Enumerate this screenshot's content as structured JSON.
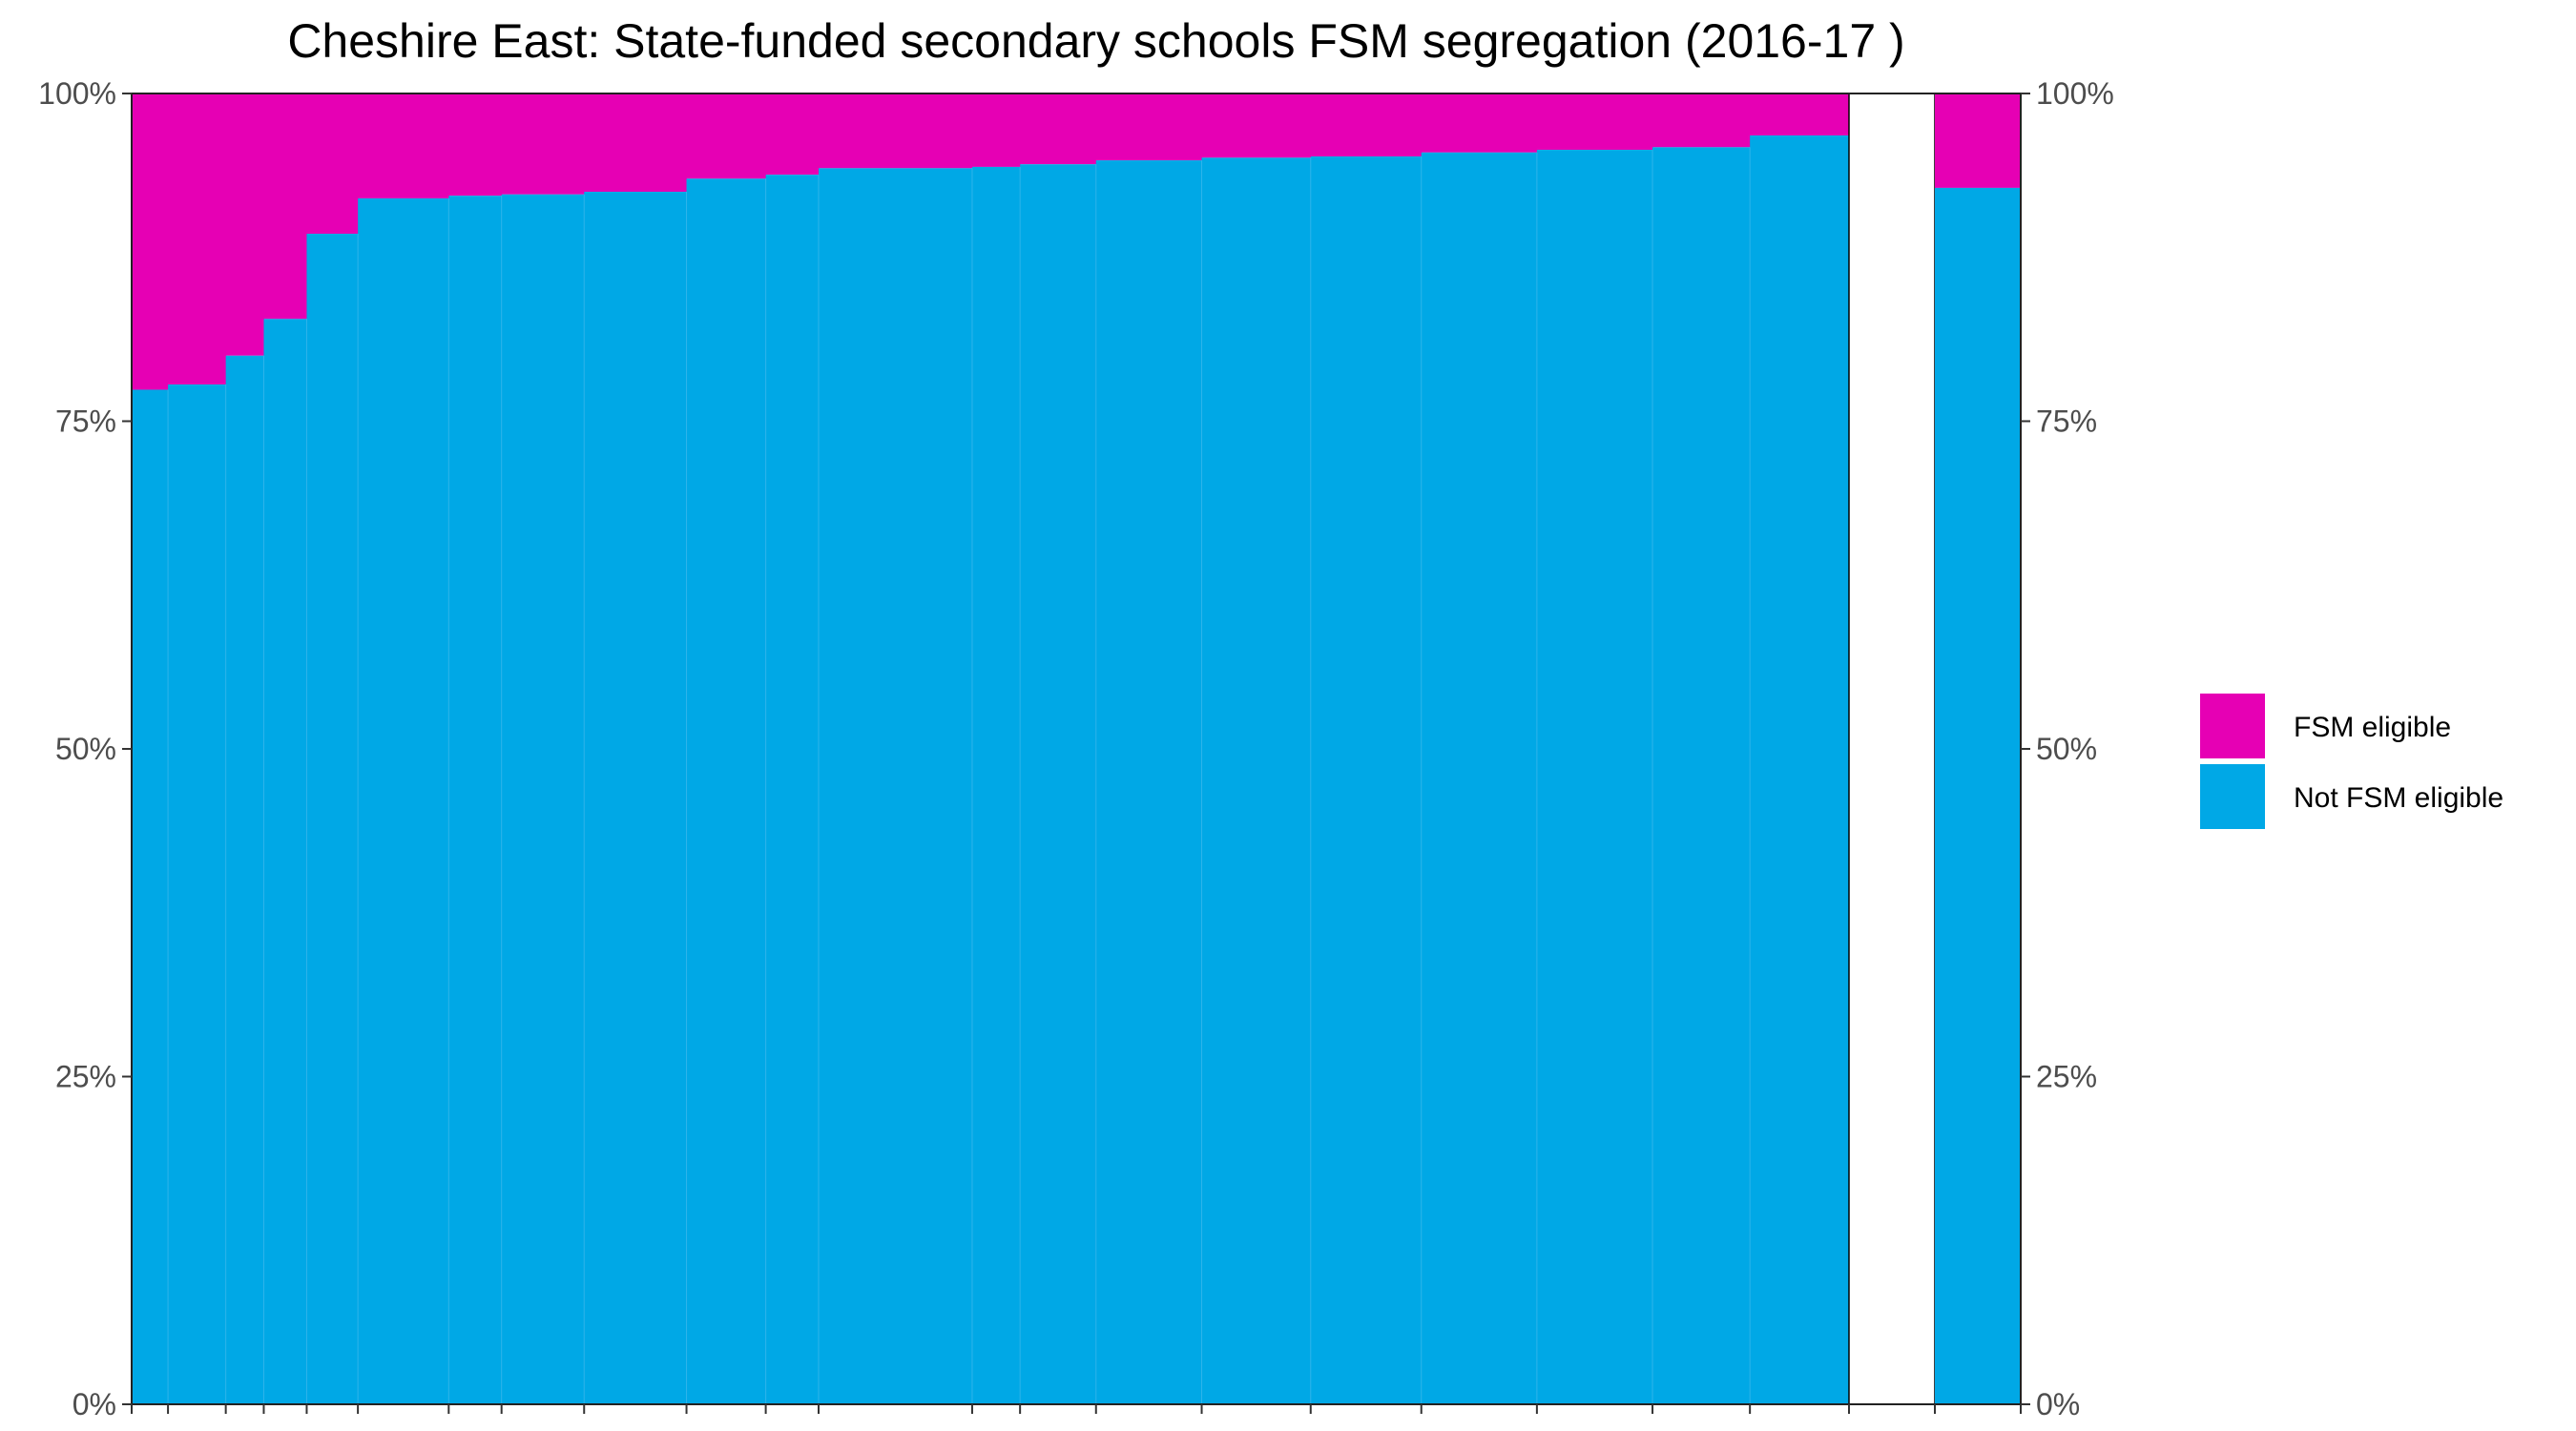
{
  "chart_data": {
    "type": "bar",
    "title": "Cheshire East: State-funded secondary schools FSM segregation (2016-17 )",
    "xlabel": "",
    "ylabel": "",
    "ylim": [
      0,
      100
    ],
    "y_ticks": [
      "0%",
      "25%",
      "50%",
      "75%",
      "100%"
    ],
    "y_tick_values": [
      0,
      25,
      50,
      75,
      100
    ],
    "secondary_y_axis": true,
    "grid": false,
    "legend_position": "right",
    "colors": {
      "fsm": "#e600b4",
      "not_fsm": "#00a8e6",
      "gap": "#ffffff"
    },
    "legend": [
      {
        "key": "fsm",
        "label": "FSM eligible"
      },
      {
        "key": "not_fsm",
        "label": "Not FSM eligible"
      }
    ],
    "series": [
      {
        "key": "not_fsm",
        "name": "Not FSM eligible"
      },
      {
        "key": "fsm",
        "name": "FSM eligible"
      }
    ],
    "schools": [
      {
        "relative_size": 22,
        "not_fsm_pct": 77.4
      },
      {
        "relative_size": 35,
        "not_fsm_pct": 77.8
      },
      {
        "relative_size": 23,
        "not_fsm_pct": 80.0
      },
      {
        "relative_size": 26,
        "not_fsm_pct": 82.8
      },
      {
        "relative_size": 31,
        "not_fsm_pct": 89.3
      },
      {
        "relative_size": 55,
        "not_fsm_pct": 92.0
      },
      {
        "relative_size": 32,
        "not_fsm_pct": 92.2
      },
      {
        "relative_size": 50,
        "not_fsm_pct": 92.3
      },
      {
        "relative_size": 62,
        "not_fsm_pct": 92.5
      },
      {
        "relative_size": 48,
        "not_fsm_pct": 93.5
      },
      {
        "relative_size": 32,
        "not_fsm_pct": 93.8
      },
      {
        "relative_size": 93,
        "not_fsm_pct": 94.3
      },
      {
        "relative_size": 29,
        "not_fsm_pct": 94.4
      },
      {
        "relative_size": 46,
        "not_fsm_pct": 94.6
      },
      {
        "relative_size": 64,
        "not_fsm_pct": 94.9
      },
      {
        "relative_size": 66,
        "not_fsm_pct": 95.1
      },
      {
        "relative_size": 67,
        "not_fsm_pct": 95.2
      },
      {
        "relative_size": 70,
        "not_fsm_pct": 95.5
      },
      {
        "relative_size": 70,
        "not_fsm_pct": 95.7
      },
      {
        "relative_size": 59,
        "not_fsm_pct": 95.9
      },
      {
        "relative_size": 60,
        "not_fsm_pct": 96.8
      }
    ],
    "total": {
      "relative_size": 52,
      "not_fsm_pct": 92.8
    },
    "gap_relative_size": 52
  }
}
